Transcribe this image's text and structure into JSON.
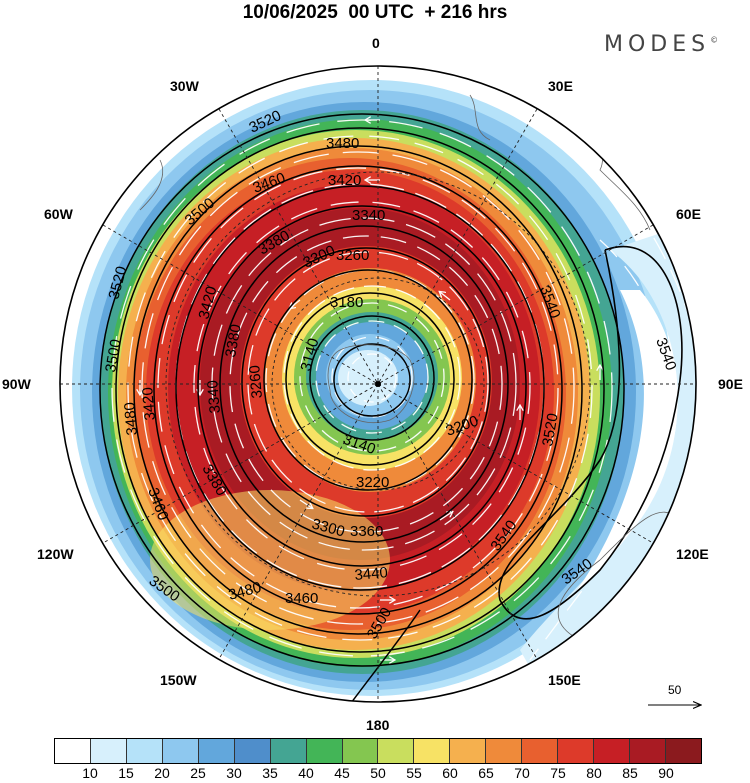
{
  "header": {
    "title": "10/06/2025  00 UTC  + 216 hrs",
    "brand": "MODES",
    "brand_mark": "©"
  },
  "longitude_labels": {
    "n": "0",
    "e30": "30E",
    "e60": "60E",
    "e90": "90E",
    "e120": "120E",
    "e150": "150E",
    "s": "180",
    "w150": "150W",
    "w120": "120W",
    "w90": "90W",
    "w60": "60W",
    "w30": "30W"
  },
  "map_data": {
    "projection": "polar stereographic, south pole centred",
    "field": "wind speed (shaded) with streamline arrows",
    "contours": "geopotential height",
    "contour_labels": [
      "3520",
      "3480",
      "3460",
      "3420",
      "3500",
      "3340",
      "3380",
      "3300",
      "3260",
      "3180",
      "3140",
      "3200",
      "3220",
      "3360",
      "3440",
      "3540"
    ],
    "reference_vector": "50"
  },
  "colorbar": {
    "colors": [
      "#ffffff",
      "#d7f0fc",
      "#b5e2f9",
      "#8ec8ef",
      "#62a7dc",
      "#4f8ecb",
      "#44a593",
      "#43b557",
      "#84c650",
      "#c9de5e",
      "#f7e265",
      "#f5b04e",
      "#ef8a3a",
      "#e8602f",
      "#dd3a2a",
      "#c61f25",
      "#a91b23",
      "#8b1a1e"
    ],
    "ticks": [
      "10",
      "15",
      "20",
      "25",
      "30",
      "35",
      "40",
      "45",
      "50",
      "55",
      "60",
      "65",
      "70",
      "75",
      "80",
      "85",
      "90"
    ]
  }
}
